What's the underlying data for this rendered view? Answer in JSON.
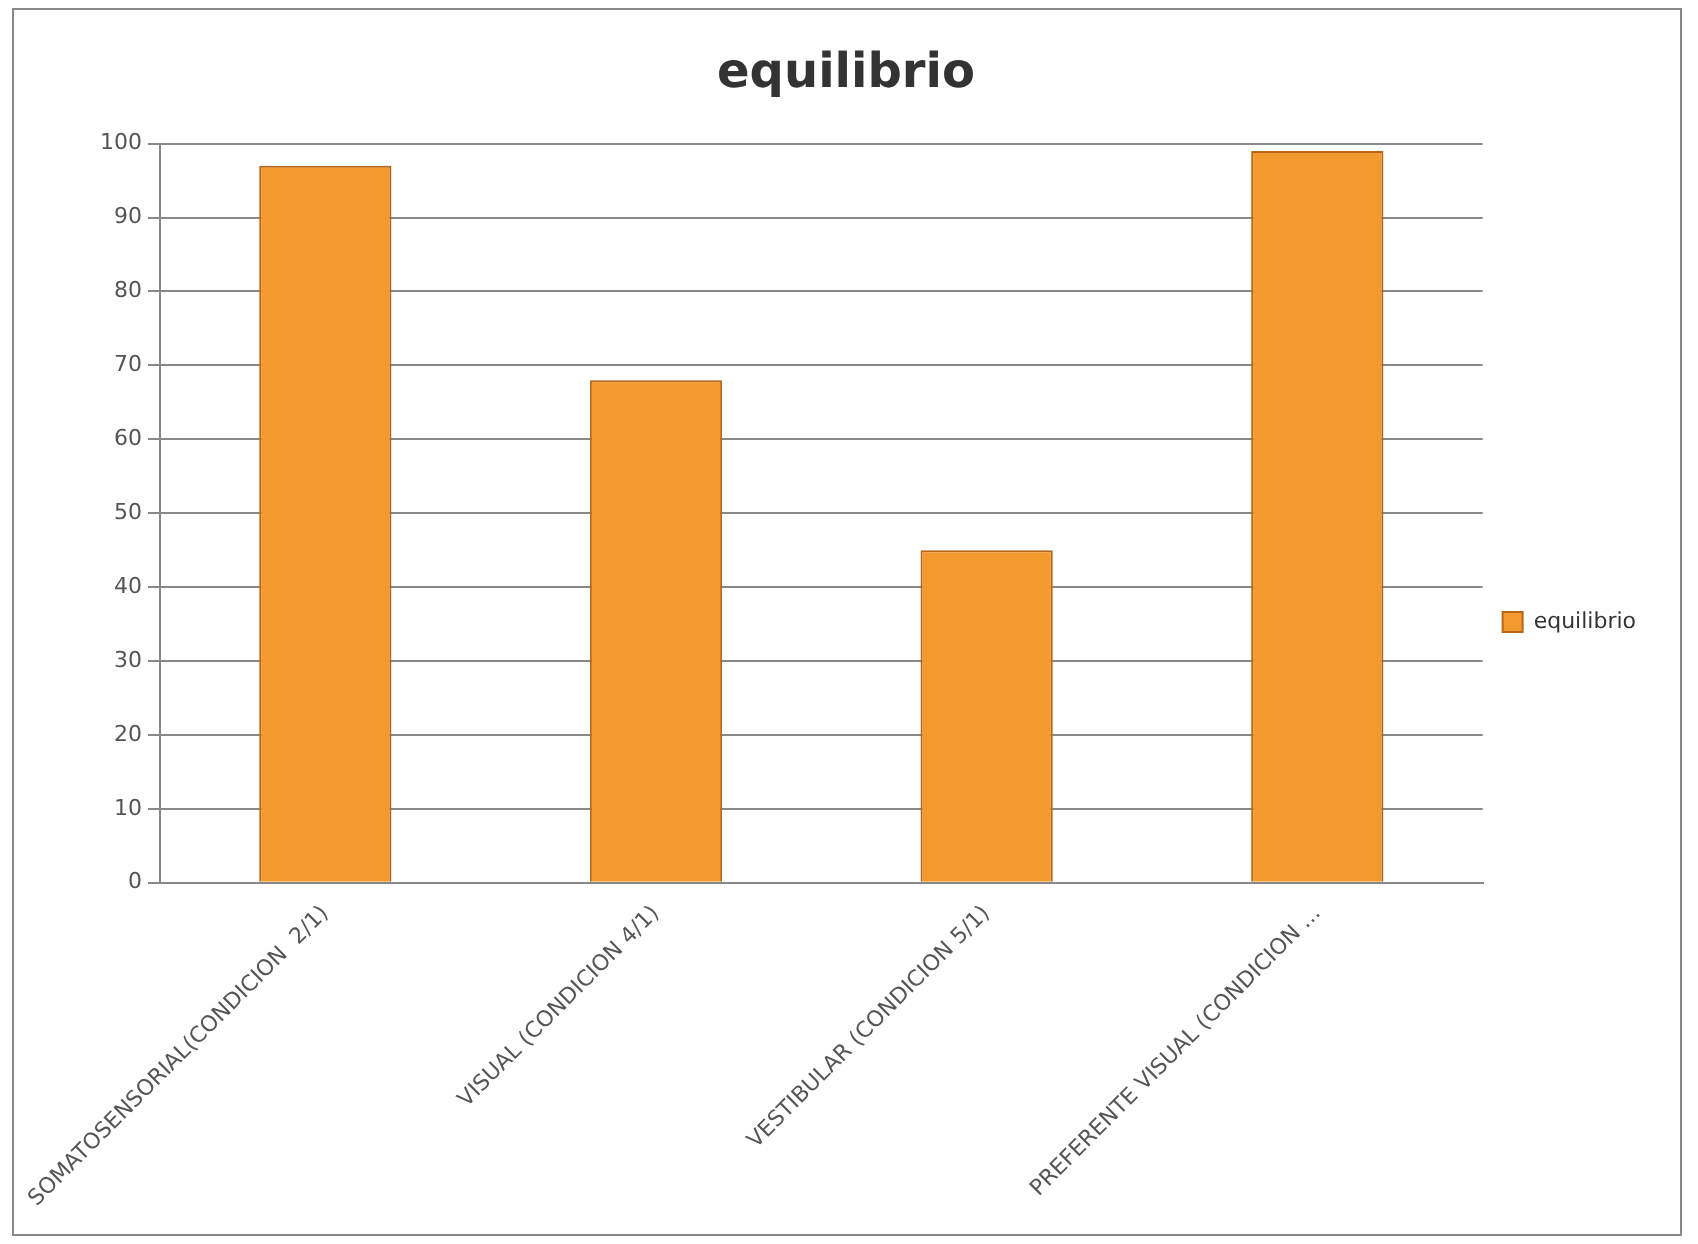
{
  "chart_data": {
    "type": "bar",
    "title": "equilibrio",
    "categories": [
      "SOMATOSENSORIAL(CONDICION  2/1)",
      "VISUAL (CONDICION 4/1)",
      "VESTIBULAR (CONDICION 5/1)",
      "PREFERENTE VISUAL (CONDICION ..."
    ],
    "series": [
      {
        "name": "equilibrio",
        "color": "#f39a2e",
        "values": [
          97,
          68,
          45,
          99
        ]
      }
    ],
    "ylim": [
      0,
      100
    ],
    "yticks": [
      0,
      10,
      20,
      30,
      40,
      50,
      60,
      70,
      80,
      90,
      100
    ],
    "grid": "y",
    "legend": "right"
  }
}
